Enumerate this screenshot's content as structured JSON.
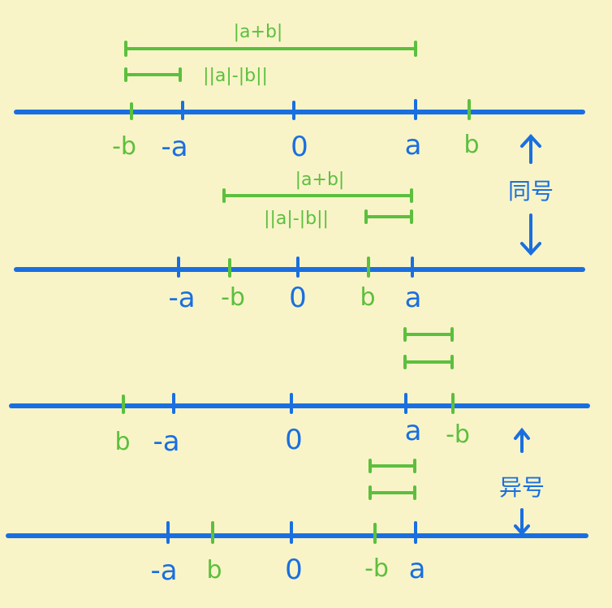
{
  "colors": {
    "background": "#f8f4c8",
    "axis": "#1a6fe0",
    "accent": "#5cbf3e"
  },
  "annotations": {
    "sum_abs": "|a+b|",
    "diff_abs": "||a|-|b||"
  },
  "sections": {
    "same_sign": "同号",
    "diff_sign": "异号"
  },
  "lines": [
    {
      "labels": {
        "neg_b": "-b",
        "neg_a": "-a",
        "zero": "0",
        "a": "a",
        "b": "b"
      }
    },
    {
      "labels": {
        "neg_a": "-a",
        "neg_b": "-b",
        "zero": "0",
        "b": "b",
        "a": "a"
      }
    },
    {
      "labels": {
        "b": "b",
        "neg_a": "-a",
        "zero": "0",
        "a": "a",
        "neg_b": "-b"
      }
    },
    {
      "labels": {
        "neg_a": "-a",
        "b": "b",
        "zero": "0",
        "neg_b": "-b",
        "a": "a"
      }
    }
  ]
}
